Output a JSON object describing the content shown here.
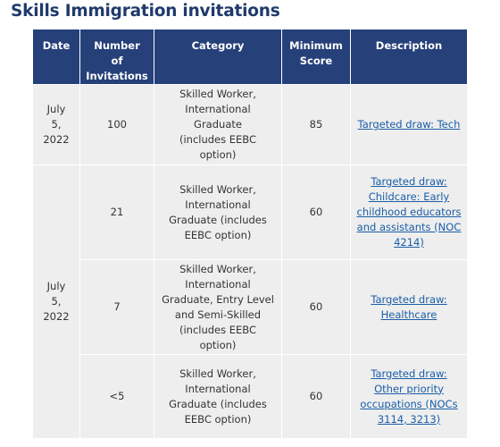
{
  "page": {
    "title": "Skills Immigration invitations"
  },
  "table": {
    "headers": {
      "date": "Date",
      "number": "Number\nof\nInvitations",
      "category": "Category",
      "score": "Minimum\nScore",
      "description": "Description"
    },
    "rows": [
      {
        "date": "July\n5,\n2022",
        "number": "100",
        "category": "Skilled Worker,\nInternational\nGraduate\n(includes EEBC option)",
        "score": "85",
        "description": "Targeted draw: Tech"
      },
      {
        "date": "July\n5,\n2022",
        "number": "21",
        "category": "Skilled Worker,\nInternational\nGraduate (includes\nEEBC option)",
        "score": "60",
        "description": "Targeted draw:\nChildcare: Early\nchildhood educators\nand assistants (NOC\n4214)"
      },
      {
        "number": "7",
        "category": "Skilled Worker,\nInternational\nGraduate, Entry Level\nand Semi-Skilled\n(includes EEBC option)",
        "score": "60",
        "description": "Targeted draw:\nHealthcare"
      },
      {
        "number": "<5",
        "category": "Skilled Worker,\nInternational\nGraduate (includes\nEEBC option)",
        "score": "60",
        "description": "Targeted draw:\nOther priority\noccupations (NOCs\n3114, 3213)"
      }
    ]
  },
  "colors": {
    "title": "#1f3a6b",
    "header_bg": "#26407a",
    "header_text": "#ffffff",
    "cell_bg": "#eeeeee",
    "link": "#1a5ea8"
  }
}
